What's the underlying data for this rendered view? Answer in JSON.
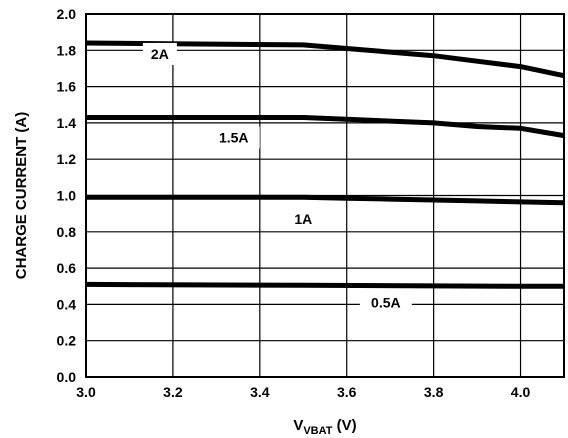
{
  "chart_data": {
    "type": "line",
    "xlabel_main": "V",
    "xlabel_sub": "VBAT",
    "xlabel_unit": " (V)",
    "ylabel": "CHARGE CURRENT (A)",
    "xlim": [
      3.0,
      4.1
    ],
    "ylim": [
      0.0,
      2.0
    ],
    "x_ticks": [
      3.0,
      3.2,
      3.4,
      3.6,
      3.8,
      4.0
    ],
    "x_tick_labels": [
      "3.0",
      "3.2",
      "3.4",
      "3.6",
      "3.8",
      "4.0"
    ],
    "y_ticks": [
      0.0,
      0.2,
      0.4,
      0.6,
      0.8,
      1.0,
      1.2,
      1.4,
      1.6,
      1.8,
      2.0
    ],
    "y_tick_labels": [
      "0.0",
      "0.2",
      "0.4",
      "0.6",
      "0.8",
      "1.0",
      "1.2",
      "1.4",
      "1.6",
      "1.8",
      "2.0"
    ],
    "grid": true,
    "series": [
      {
        "name": "2A",
        "label_x": 3.17,
        "label_y": 1.78,
        "x": [
          3.0,
          3.5,
          3.6,
          3.7,
          3.8,
          3.9,
          4.0,
          4.1
        ],
        "y": [
          1.84,
          1.83,
          1.81,
          1.79,
          1.77,
          1.74,
          1.71,
          1.66
        ]
      },
      {
        "name": "1.5A",
        "label_x": 3.34,
        "label_y": 1.32,
        "x": [
          3.0,
          3.5,
          3.6,
          3.7,
          3.8,
          3.9,
          4.0,
          4.1
        ],
        "y": [
          1.43,
          1.43,
          1.42,
          1.41,
          1.4,
          1.38,
          1.37,
          1.33
        ]
      },
      {
        "name": "1A",
        "label_x": 3.5,
        "label_y": 0.87,
        "x": [
          3.0,
          3.5,
          3.6,
          3.7,
          3.8,
          3.9,
          4.0,
          4.1
        ],
        "y": [
          0.99,
          0.99,
          0.985,
          0.98,
          0.975,
          0.97,
          0.965,
          0.96
        ]
      },
      {
        "name": "0.5A",
        "label_x": 3.69,
        "label_y": 0.41,
        "x": [
          3.0,
          3.5,
          4.0,
          4.1
        ],
        "y": [
          0.51,
          0.505,
          0.5,
          0.5
        ]
      }
    ]
  }
}
